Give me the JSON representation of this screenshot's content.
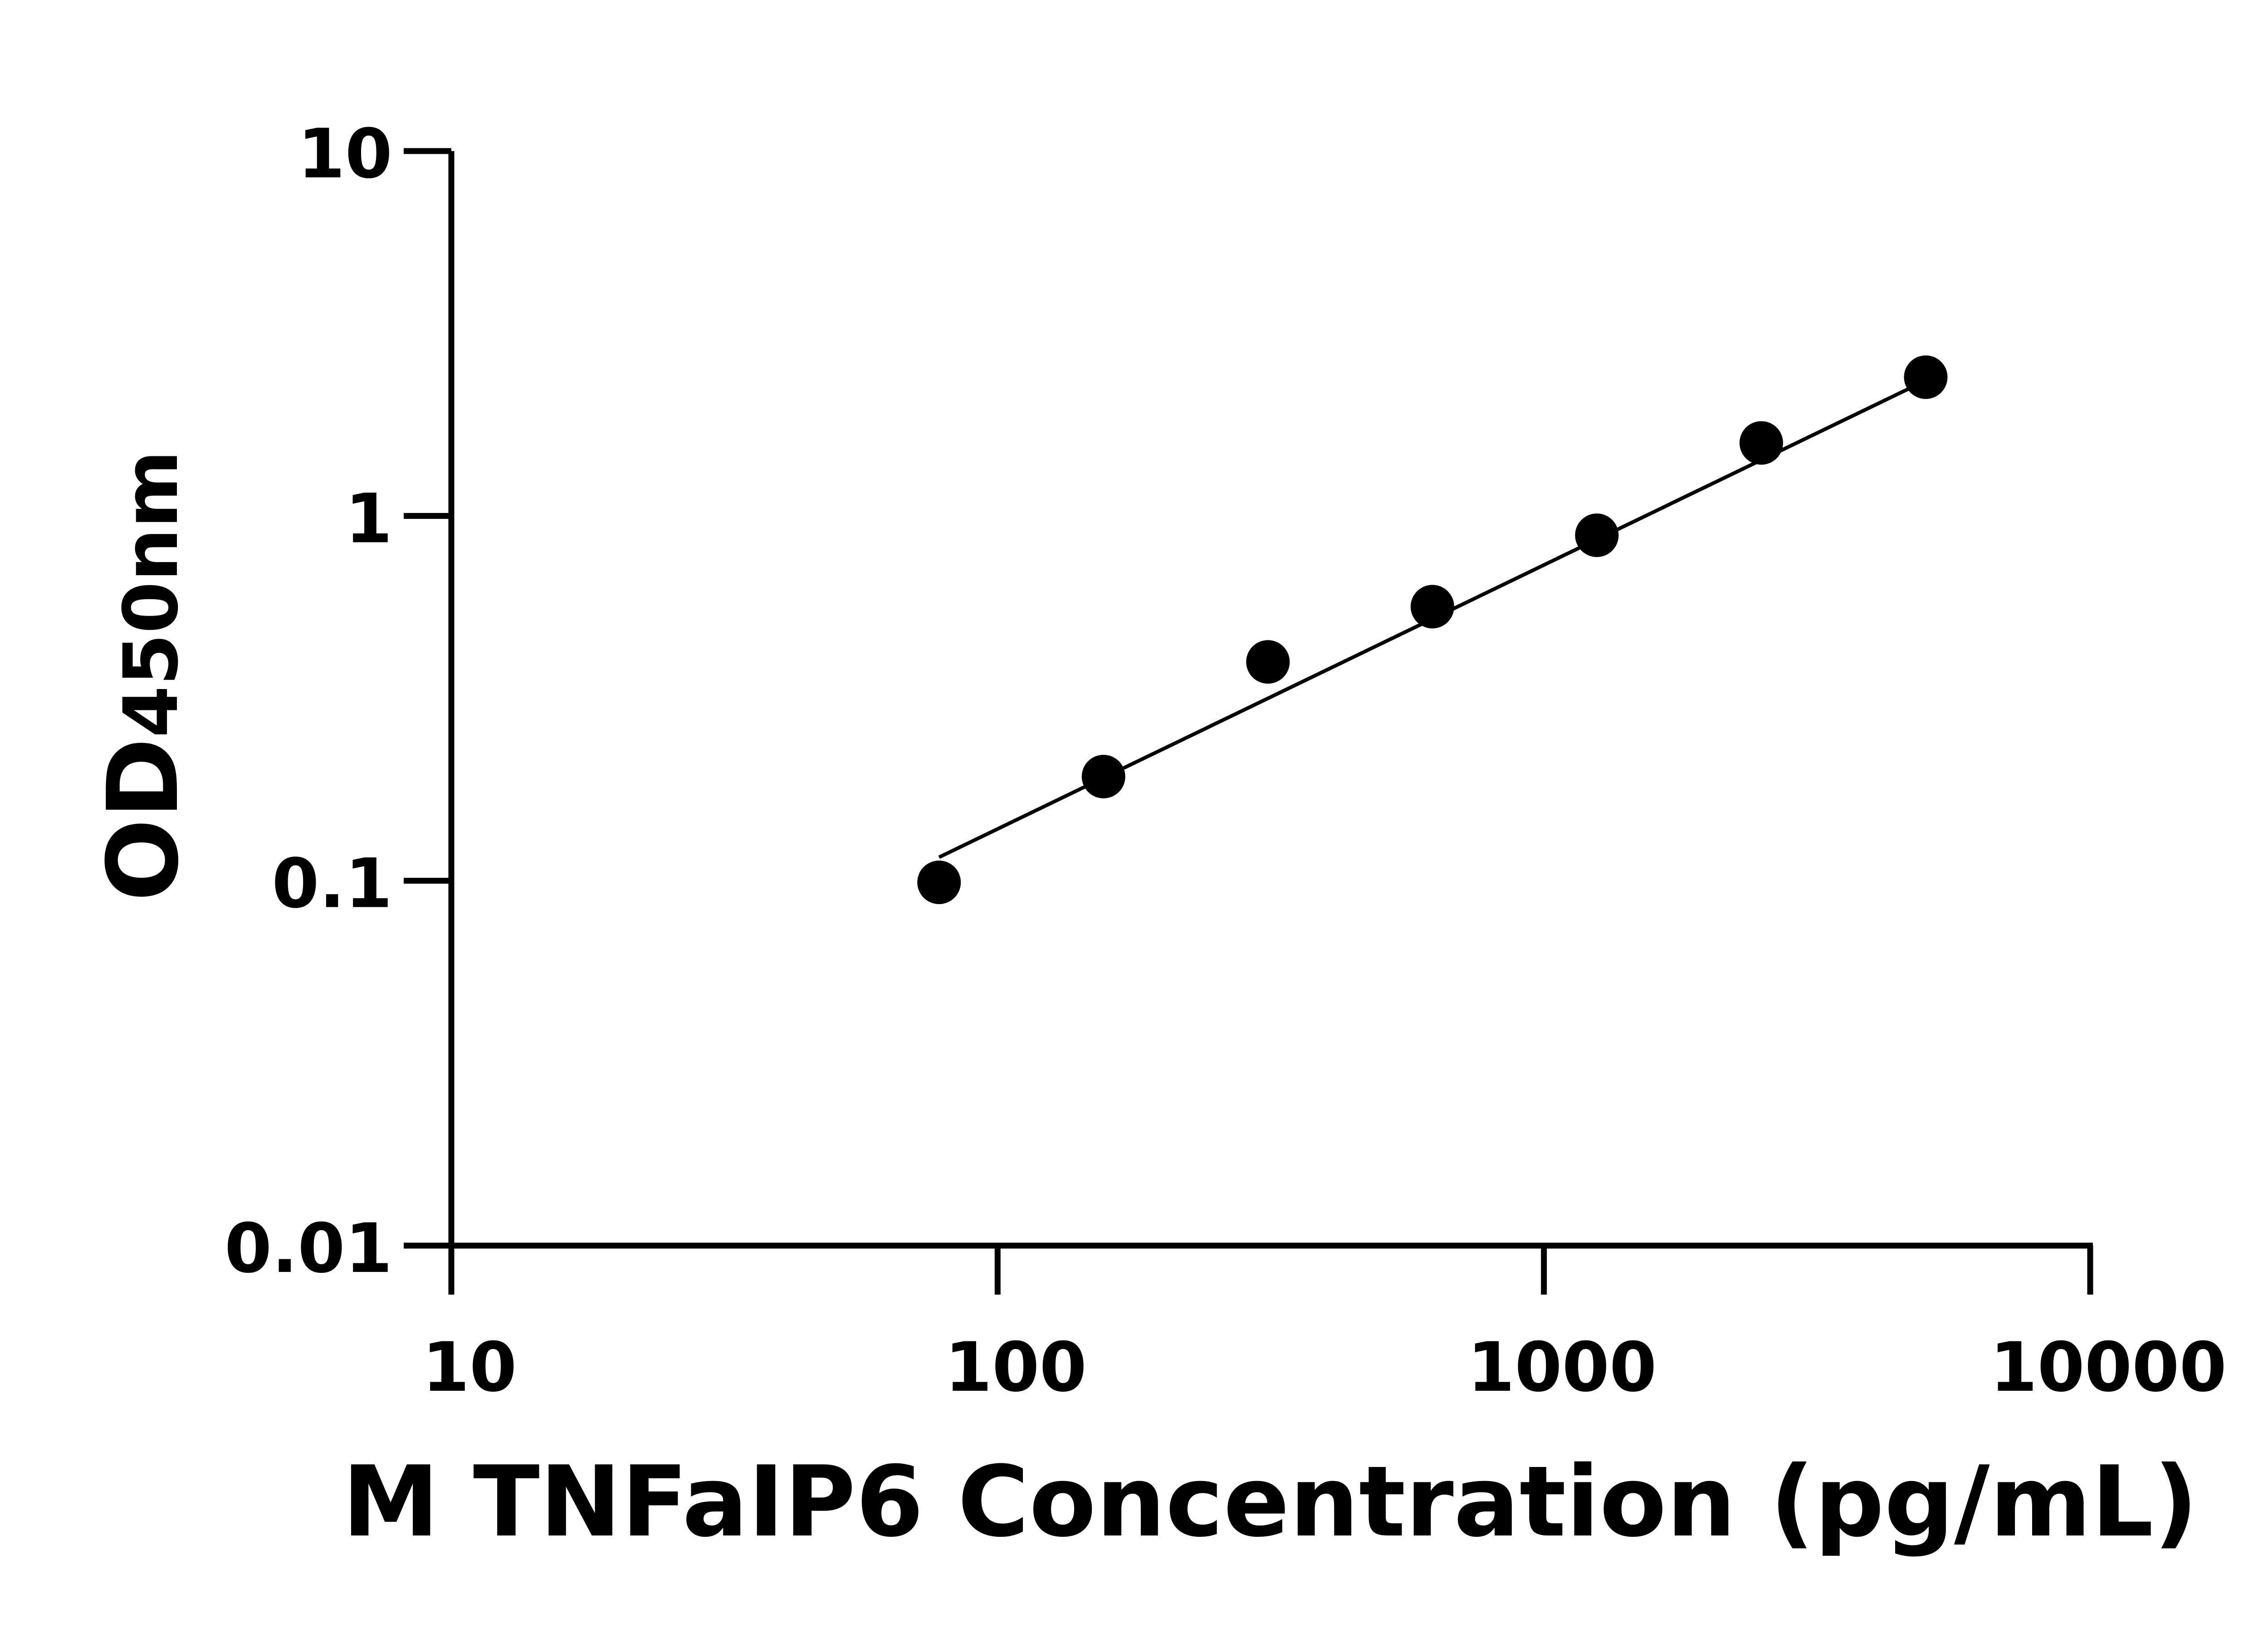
{
  "chart_data": {
    "type": "scatter",
    "title": "",
    "xlabel": "M TNFaIP6 Concentration (pg/mL)",
    "ylabel": {
      "main": "OD",
      "sub": "450nm"
    },
    "x_scale": "log",
    "y_scale": "log",
    "xlim": [
      10,
      10000
    ],
    "ylim": [
      0.01,
      10
    ],
    "x_ticks": [
      "10",
      "100",
      "1000",
      "10000"
    ],
    "y_ticks": [
      "0.01",
      "0.1",
      "1",
      "10"
    ],
    "grid": false,
    "colors": {
      "marker": "#000000",
      "line": "#000000",
      "axis": "#000000"
    },
    "points": {
      "x": [
        78.125,
        156.25,
        312.5,
        625,
        1250,
        2500,
        5000
      ],
      "y": [
        0.099,
        0.193,
        0.398,
        0.564,
        0.885,
        1.585,
        2.4
      ]
    },
    "fit_line": {
      "x": [
        78.125,
        5000
      ],
      "y": [
        0.116,
        2.35
      ]
    }
  }
}
